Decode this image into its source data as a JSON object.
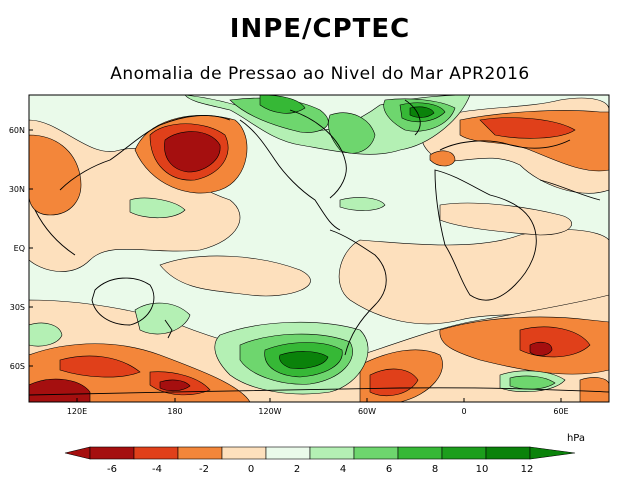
{
  "header": {
    "title": "INPE/CPTEC",
    "subtitle": "Anomalia de Pressao ao Nivel do Mar APR2016"
  },
  "map": {
    "lat_labels": [
      "60N",
      "30N",
      "EQ",
      "30S",
      "60S"
    ],
    "lon_labels": [
      "120E",
      "180",
      "120W",
      "60W",
      "0",
      "60E"
    ]
  },
  "colorbar": {
    "unit": "hPa",
    "ticks": [
      "-6",
      "-4",
      "-2",
      "0",
      "2",
      "4",
      "6",
      "8",
      "10",
      "12"
    ],
    "colors": [
      "#a50f0f",
      "#e0401a",
      "#f3863a",
      "#fde0bd",
      "#eafaea",
      "#b4f0b4",
      "#6ed66e",
      "#36b836",
      "#1c9e1c",
      "#0a820a"
    ]
  },
  "colors": {
    "land_outline": "#000000",
    "contour": "#000000"
  }
}
